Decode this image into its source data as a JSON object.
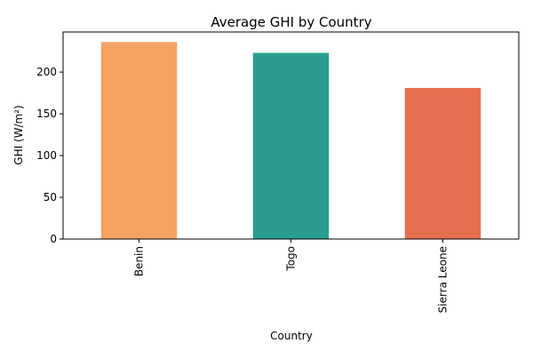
{
  "chart_data": {
    "type": "bar",
    "title": "Average GHI by Country",
    "xlabel": "Country",
    "ylabel": "GHI (W/m²)",
    "categories": [
      "Benin",
      "Togo",
      "Sierra Leone"
    ],
    "values": [
      236,
      223,
      181
    ],
    "colors": [
      "#F4A261",
      "#2A9D8F",
      "#E76F51"
    ],
    "ylim": [
      0,
      248
    ],
    "yticks": [
      0,
      50,
      100,
      150,
      200
    ],
    "grid": false,
    "legend": "none"
  }
}
